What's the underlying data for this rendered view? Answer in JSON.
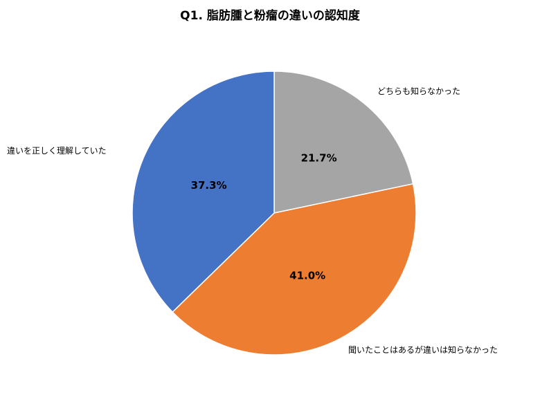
{
  "chart_data": {
    "type": "pie",
    "title": "Q1. 脂肪腫と粉瘤の違いの認知度",
    "slices": [
      {
        "name": "どちらも知らなかった",
        "value": 21.7,
        "value_label": "21.7%",
        "color": "#A5A5A5"
      },
      {
        "name": "聞いたことはあるが違いは知らなかった",
        "value": 41.0,
        "value_label": "41.0%",
        "color": "#ED7D31"
      },
      {
        "name": "違いを正しく理解していた",
        "value": 37.3,
        "value_label": "37.3%",
        "color": "#4472C4"
      }
    ],
    "start_angle": "12 o'clock",
    "direction": "clockwise"
  }
}
